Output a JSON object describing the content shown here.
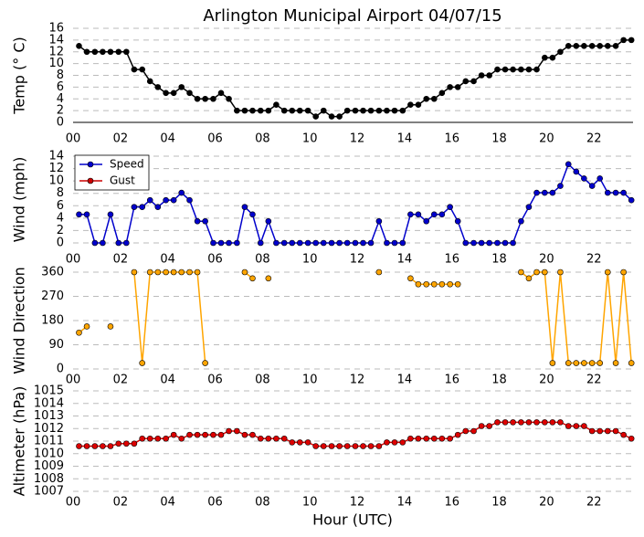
{
  "chart_data": [
    {
      "type": "line",
      "title": "Arlington Municipal Airport 04/07/15",
      "ylabel": "Temp (° C)",
      "color": "#000000",
      "x": [
        0.25,
        0.58,
        0.92,
        1.25,
        1.58,
        1.92,
        2.25,
        2.58,
        2.92,
        3.25,
        3.58,
        3.92,
        4.25,
        4.58,
        4.92,
        5.25,
        5.58,
        5.92,
        6.25,
        6.58,
        6.92,
        7.25,
        7.58,
        7.92,
        8.25,
        8.58,
        8.92,
        9.25,
        9.58,
        9.92,
        10.25,
        10.58,
        10.92,
        11.25,
        11.58,
        11.92,
        12.25,
        12.58,
        12.92,
        13.25,
        13.58,
        13.92,
        14.25,
        14.58,
        14.92,
        15.25,
        15.58,
        15.92,
        16.25,
        16.58,
        16.92,
        17.25,
        17.58,
        17.92,
        18.25,
        18.58,
        18.92,
        19.25,
        19.58,
        19.92,
        20.25,
        20.58,
        20.92,
        21.25,
        21.58,
        21.92,
        22.25,
        22.58,
        22.92,
        23.25,
        23.58
      ],
      "values": [
        13,
        12,
        12,
        12,
        12,
        12,
        12,
        9,
        9,
        7,
        6,
        5,
        5,
        6,
        5,
        4,
        4,
        4,
        5,
        4,
        2,
        2,
        2,
        2,
        2,
        3,
        2,
        2,
        2,
        2,
        1,
        2,
        1,
        1,
        2,
        2,
        2,
        2,
        2,
        2,
        2,
        2,
        3,
        3,
        4,
        4,
        5,
        6,
        6,
        7,
        7,
        8,
        8,
        9,
        9,
        9,
        9,
        9,
        9,
        11,
        11,
        12,
        13,
        13,
        13,
        13,
        13,
        13,
        13,
        14,
        14
      ],
      "xlim": [
        0,
        23.65
      ],
      "xticks": [
        {
          "value": 0,
          "label": "00"
        },
        {
          "value": 2,
          "label": "02"
        },
        {
          "value": 4,
          "label": "04"
        },
        {
          "value": 6,
          "label": "06"
        },
        {
          "value": 8,
          "label": "08"
        },
        {
          "value": 10,
          "label": "10"
        },
        {
          "value": 12,
          "label": "12"
        },
        {
          "value": 14,
          "label": "14"
        },
        {
          "value": 16,
          "label": "16"
        },
        {
          "value": 18,
          "label": "18"
        },
        {
          "value": 20,
          "label": "20"
        },
        {
          "value": 22,
          "label": "22"
        }
      ],
      "ylim": [
        0,
        16
      ],
      "yticks": [
        0,
        2,
        4,
        6,
        8,
        10,
        12,
        14,
        16
      ],
      "grid": true
    },
    {
      "type": "line",
      "ylabel": "Wind (mph)",
      "legend": "upper left",
      "x": [
        0.25,
        0.58,
        0.92,
        1.25,
        1.58,
        1.92,
        2.25,
        2.58,
        2.92,
        3.25,
        3.58,
        3.92,
        4.25,
        4.58,
        4.92,
        5.25,
        5.58,
        5.92,
        6.25,
        6.58,
        6.92,
        7.25,
        7.58,
        7.92,
        8.25,
        8.58,
        8.92,
        9.25,
        9.58,
        9.92,
        10.25,
        10.58,
        10.92,
        11.25,
        11.58,
        11.92,
        12.25,
        12.58,
        12.92,
        13.25,
        13.58,
        13.92,
        14.25,
        14.58,
        14.92,
        15.25,
        15.58,
        15.92,
        16.25,
        16.58,
        16.92,
        17.25,
        17.58,
        17.92,
        18.25,
        18.58,
        18.92,
        19.25,
        19.58,
        19.92,
        20.25,
        20.58,
        20.92,
        21.25,
        21.58,
        21.92,
        22.25,
        22.58,
        22.92,
        23.25,
        23.58
      ],
      "series": [
        {
          "name": "Speed",
          "color": "#0000cc",
          "values": [
            4.6,
            4.6,
            0,
            0,
            4.6,
            0,
            0,
            5.8,
            5.8,
            6.9,
            5.8,
            6.9,
            6.9,
            8.1,
            6.9,
            3.5,
            3.5,
            0,
            0,
            0,
            0,
            5.8,
            4.6,
            0,
            3.5,
            0,
            0,
            0,
            0,
            0,
            0,
            0,
            0,
            0,
            0,
            0,
            0,
            0,
            3.5,
            0,
            0,
            0,
            4.6,
            4.6,
            3.5,
            4.6,
            4.6,
            5.8,
            3.5,
            0,
            0,
            0,
            0,
            0,
            0,
            0,
            3.5,
            5.8,
            8.1,
            8.1,
            8.1,
            9.2,
            12.7,
            11.5,
            10.4,
            9.2,
            10.4,
            8.1,
            8.1,
            8.1,
            6.9
          ]
        },
        {
          "name": "Gust",
          "color": "#cc0000",
          "values": [
            null,
            null,
            null,
            null,
            null,
            null,
            null,
            null,
            null,
            null,
            null,
            null,
            null,
            null,
            null,
            null,
            null,
            null,
            null,
            null,
            null,
            null,
            null,
            null,
            null,
            null,
            null,
            null,
            null,
            null,
            null,
            null,
            null,
            null,
            null,
            null,
            null,
            null,
            null,
            null,
            null,
            null,
            null,
            null,
            null,
            null,
            null,
            null,
            null,
            null,
            null,
            null,
            null,
            null,
            null,
            null,
            null,
            null,
            null,
            null,
            null,
            null,
            null,
            null,
            null,
            null,
            null,
            null,
            null,
            null,
            null
          ]
        }
      ],
      "xlim": [
        0,
        23.65
      ],
      "xticks": [
        {
          "value": 0,
          "label": "00"
        },
        {
          "value": 2,
          "label": "02"
        },
        {
          "value": 4,
          "label": "04"
        },
        {
          "value": 6,
          "label": "06"
        },
        {
          "value": 8,
          "label": "08"
        },
        {
          "value": 10,
          "label": "10"
        },
        {
          "value": 12,
          "label": "12"
        },
        {
          "value": 14,
          "label": "14"
        },
        {
          "value": 16,
          "label": "16"
        },
        {
          "value": 18,
          "label": "18"
        },
        {
          "value": 20,
          "label": "20"
        },
        {
          "value": 22,
          "label": "22"
        }
      ],
      "ylim": [
        0,
        14
      ],
      "yticks": [
        0,
        2,
        4,
        6,
        8,
        10,
        12,
        14
      ],
      "grid": true
    },
    {
      "type": "line",
      "ylabel": "Wind Direction",
      "color": "#ffa500",
      "x": [
        0.25,
        0.58,
        0.92,
        1.25,
        1.58,
        1.92,
        2.25,
        2.58,
        2.92,
        3.25,
        3.58,
        3.92,
        4.25,
        4.58,
        4.92,
        5.25,
        5.58,
        5.92,
        6.25,
        6.58,
        6.92,
        7.25,
        7.58,
        7.92,
        8.25,
        8.58,
        8.92,
        9.25,
        9.58,
        9.92,
        10.25,
        10.58,
        10.92,
        11.25,
        11.58,
        11.92,
        12.25,
        12.58,
        12.92,
        13.25,
        13.58,
        13.92,
        14.25,
        14.58,
        14.92,
        15.25,
        15.58,
        15.92,
        16.25,
        16.58,
        16.92,
        17.25,
        17.58,
        17.92,
        18.25,
        18.58,
        18.92,
        19.25,
        19.58,
        19.92,
        20.25,
        20.58,
        20.92,
        21.25,
        21.58,
        21.92,
        22.25,
        22.58,
        22.92,
        23.25,
        23.58
      ],
      "values": [
        135,
        158,
        null,
        null,
        158,
        null,
        null,
        360,
        22,
        360,
        360,
        360,
        360,
        360,
        360,
        360,
        22,
        null,
        null,
        null,
        null,
        360,
        337,
        null,
        337,
        null,
        null,
        null,
        null,
        null,
        null,
        null,
        null,
        null,
        null,
        null,
        null,
        null,
        360,
        null,
        null,
        null,
        337,
        315,
        315,
        315,
        315,
        315,
        315,
        null,
        null,
        null,
        null,
        null,
        null,
        null,
        360,
        337,
        360,
        360,
        22,
        360,
        22,
        22,
        22,
        22,
        22,
        360,
        22,
        360,
        22
      ],
      "xlim": [
        0,
        23.65
      ],
      "xticks": [
        {
          "value": 0,
          "label": "00"
        },
        {
          "value": 2,
          "label": "02"
        },
        {
          "value": 4,
          "label": "04"
        },
        {
          "value": 6,
          "label": "06"
        },
        {
          "value": 8,
          "label": "08"
        },
        {
          "value": 10,
          "label": "10"
        },
        {
          "value": 12,
          "label": "12"
        },
        {
          "value": 14,
          "label": "14"
        },
        {
          "value": 16,
          "label": "16"
        },
        {
          "value": 18,
          "label": "18"
        },
        {
          "value": 20,
          "label": "20"
        },
        {
          "value": 22,
          "label": "22"
        }
      ],
      "ylim": [
        0,
        360
      ],
      "yticks": [
        0,
        90,
        180,
        270,
        360
      ],
      "grid": true
    },
    {
      "type": "line",
      "ylabel": "Altimeter (hPa)",
      "xlabel": "Hour (UTC)",
      "color": "#dd0000",
      "x": [
        0.25,
        0.58,
        0.92,
        1.25,
        1.58,
        1.92,
        2.25,
        2.58,
        2.92,
        3.25,
        3.58,
        3.92,
        4.25,
        4.58,
        4.92,
        5.25,
        5.58,
        5.92,
        6.25,
        6.58,
        6.92,
        7.25,
        7.58,
        7.92,
        8.25,
        8.58,
        8.92,
        9.25,
        9.58,
        9.92,
        10.25,
        10.58,
        10.92,
        11.25,
        11.58,
        11.92,
        12.25,
        12.58,
        12.92,
        13.25,
        13.58,
        13.92,
        14.25,
        14.58,
        14.92,
        15.25,
        15.58,
        15.92,
        16.25,
        16.58,
        16.92,
        17.25,
        17.58,
        17.92,
        18.25,
        18.58,
        18.92,
        19.25,
        19.58,
        19.92,
        20.25,
        20.58,
        20.92,
        21.25,
        21.58,
        21.92,
        22.25,
        22.58,
        22.92,
        23.25,
        23.58
      ],
      "values": [
        1010.6,
        1010.6,
        1010.6,
        1010.6,
        1010.6,
        1010.8,
        1010.8,
        1010.8,
        1011.2,
        1011.2,
        1011.2,
        1011.2,
        1011.5,
        1011.2,
        1011.5,
        1011.5,
        1011.5,
        1011.5,
        1011.5,
        1011.8,
        1011.8,
        1011.5,
        1011.5,
        1011.2,
        1011.2,
        1011.2,
        1011.2,
        1010.9,
        1010.9,
        1010.9,
        1010.6,
        1010.6,
        1010.6,
        1010.6,
        1010.6,
        1010.6,
        1010.6,
        1010.6,
        1010.6,
        1010.9,
        1010.9,
        1010.9,
        1011.2,
        1011.2,
        1011.2,
        1011.2,
        1011.2,
        1011.2,
        1011.5,
        1011.8,
        1011.8,
        1012.2,
        1012.2,
        1012.5,
        1012.5,
        1012.5,
        1012.5,
        1012.5,
        1012.5,
        1012.5,
        1012.5,
        1012.5,
        1012.2,
        1012.2,
        1012.2,
        1011.8,
        1011.8,
        1011.8,
        1011.8,
        1011.5,
        1011.2
      ],
      "xlim": [
        0,
        23.65
      ],
      "xticks": [
        {
          "value": 0,
          "label": "00"
        },
        {
          "value": 2,
          "label": "02"
        },
        {
          "value": 4,
          "label": "04"
        },
        {
          "value": 6,
          "label": "06"
        },
        {
          "value": 8,
          "label": "08"
        },
        {
          "value": 10,
          "label": "10"
        },
        {
          "value": 12,
          "label": "12"
        },
        {
          "value": 14,
          "label": "14"
        },
        {
          "value": 16,
          "label": "16"
        },
        {
          "value": 18,
          "label": "18"
        },
        {
          "value": 20,
          "label": "20"
        },
        {
          "value": 22,
          "label": "22"
        }
      ],
      "ylim": [
        1007,
        1015
      ],
      "yticks": [
        1007,
        1008,
        1009,
        1010,
        1011,
        1012,
        1013,
        1014,
        1015
      ],
      "grid": true
    }
  ]
}
